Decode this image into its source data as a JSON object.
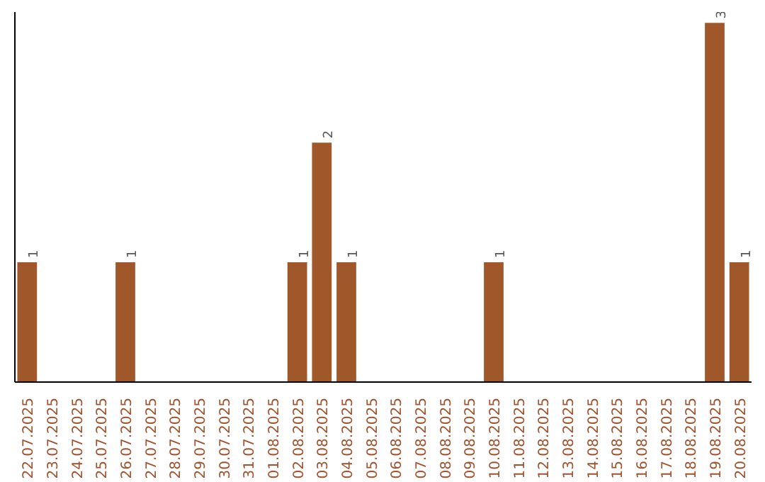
{
  "chart_data": {
    "type": "bar",
    "categories": [
      "22.07.2025",
      "23.07.2025",
      "24.07.2025",
      "25.07.2025",
      "26.07.2025",
      "27.07.2025",
      "28.07.2025",
      "29.07.2025",
      "30.07.2025",
      "31.07.2025",
      "01.08.2025",
      "02.08.2025",
      "03.08.2025",
      "04.08.2025",
      "05.08.2025",
      "06.08.2025",
      "07.08.2025",
      "08.08.2025",
      "09.08.2025",
      "10.08.2025",
      "11.08.2025",
      "12.08.2025",
      "13.08.2025",
      "14.08.2025",
      "15.08.2025",
      "16.08.2025",
      "17.08.2025",
      "18.08.2025",
      "19.08.2025",
      "20.08.2025"
    ],
    "values": [
      1,
      0,
      0,
      0,
      1,
      0,
      0,
      0,
      0,
      0,
      0,
      1,
      2,
      1,
      0,
      0,
      0,
      0,
      0,
      1,
      0,
      0,
      0,
      0,
      0,
      0,
      0,
      0,
      3,
      1
    ],
    "value_labels": [
      "1",
      null,
      null,
      null,
      "1",
      null,
      null,
      null,
      null,
      null,
      null,
      "1",
      "2",
      "1",
      null,
      null,
      null,
      null,
      null,
      "1",
      null,
      null,
      null,
      null,
      null,
      null,
      null,
      null,
      "3",
      "1"
    ],
    "color": "#a0582a",
    "tick_labels": "x"
  }
}
